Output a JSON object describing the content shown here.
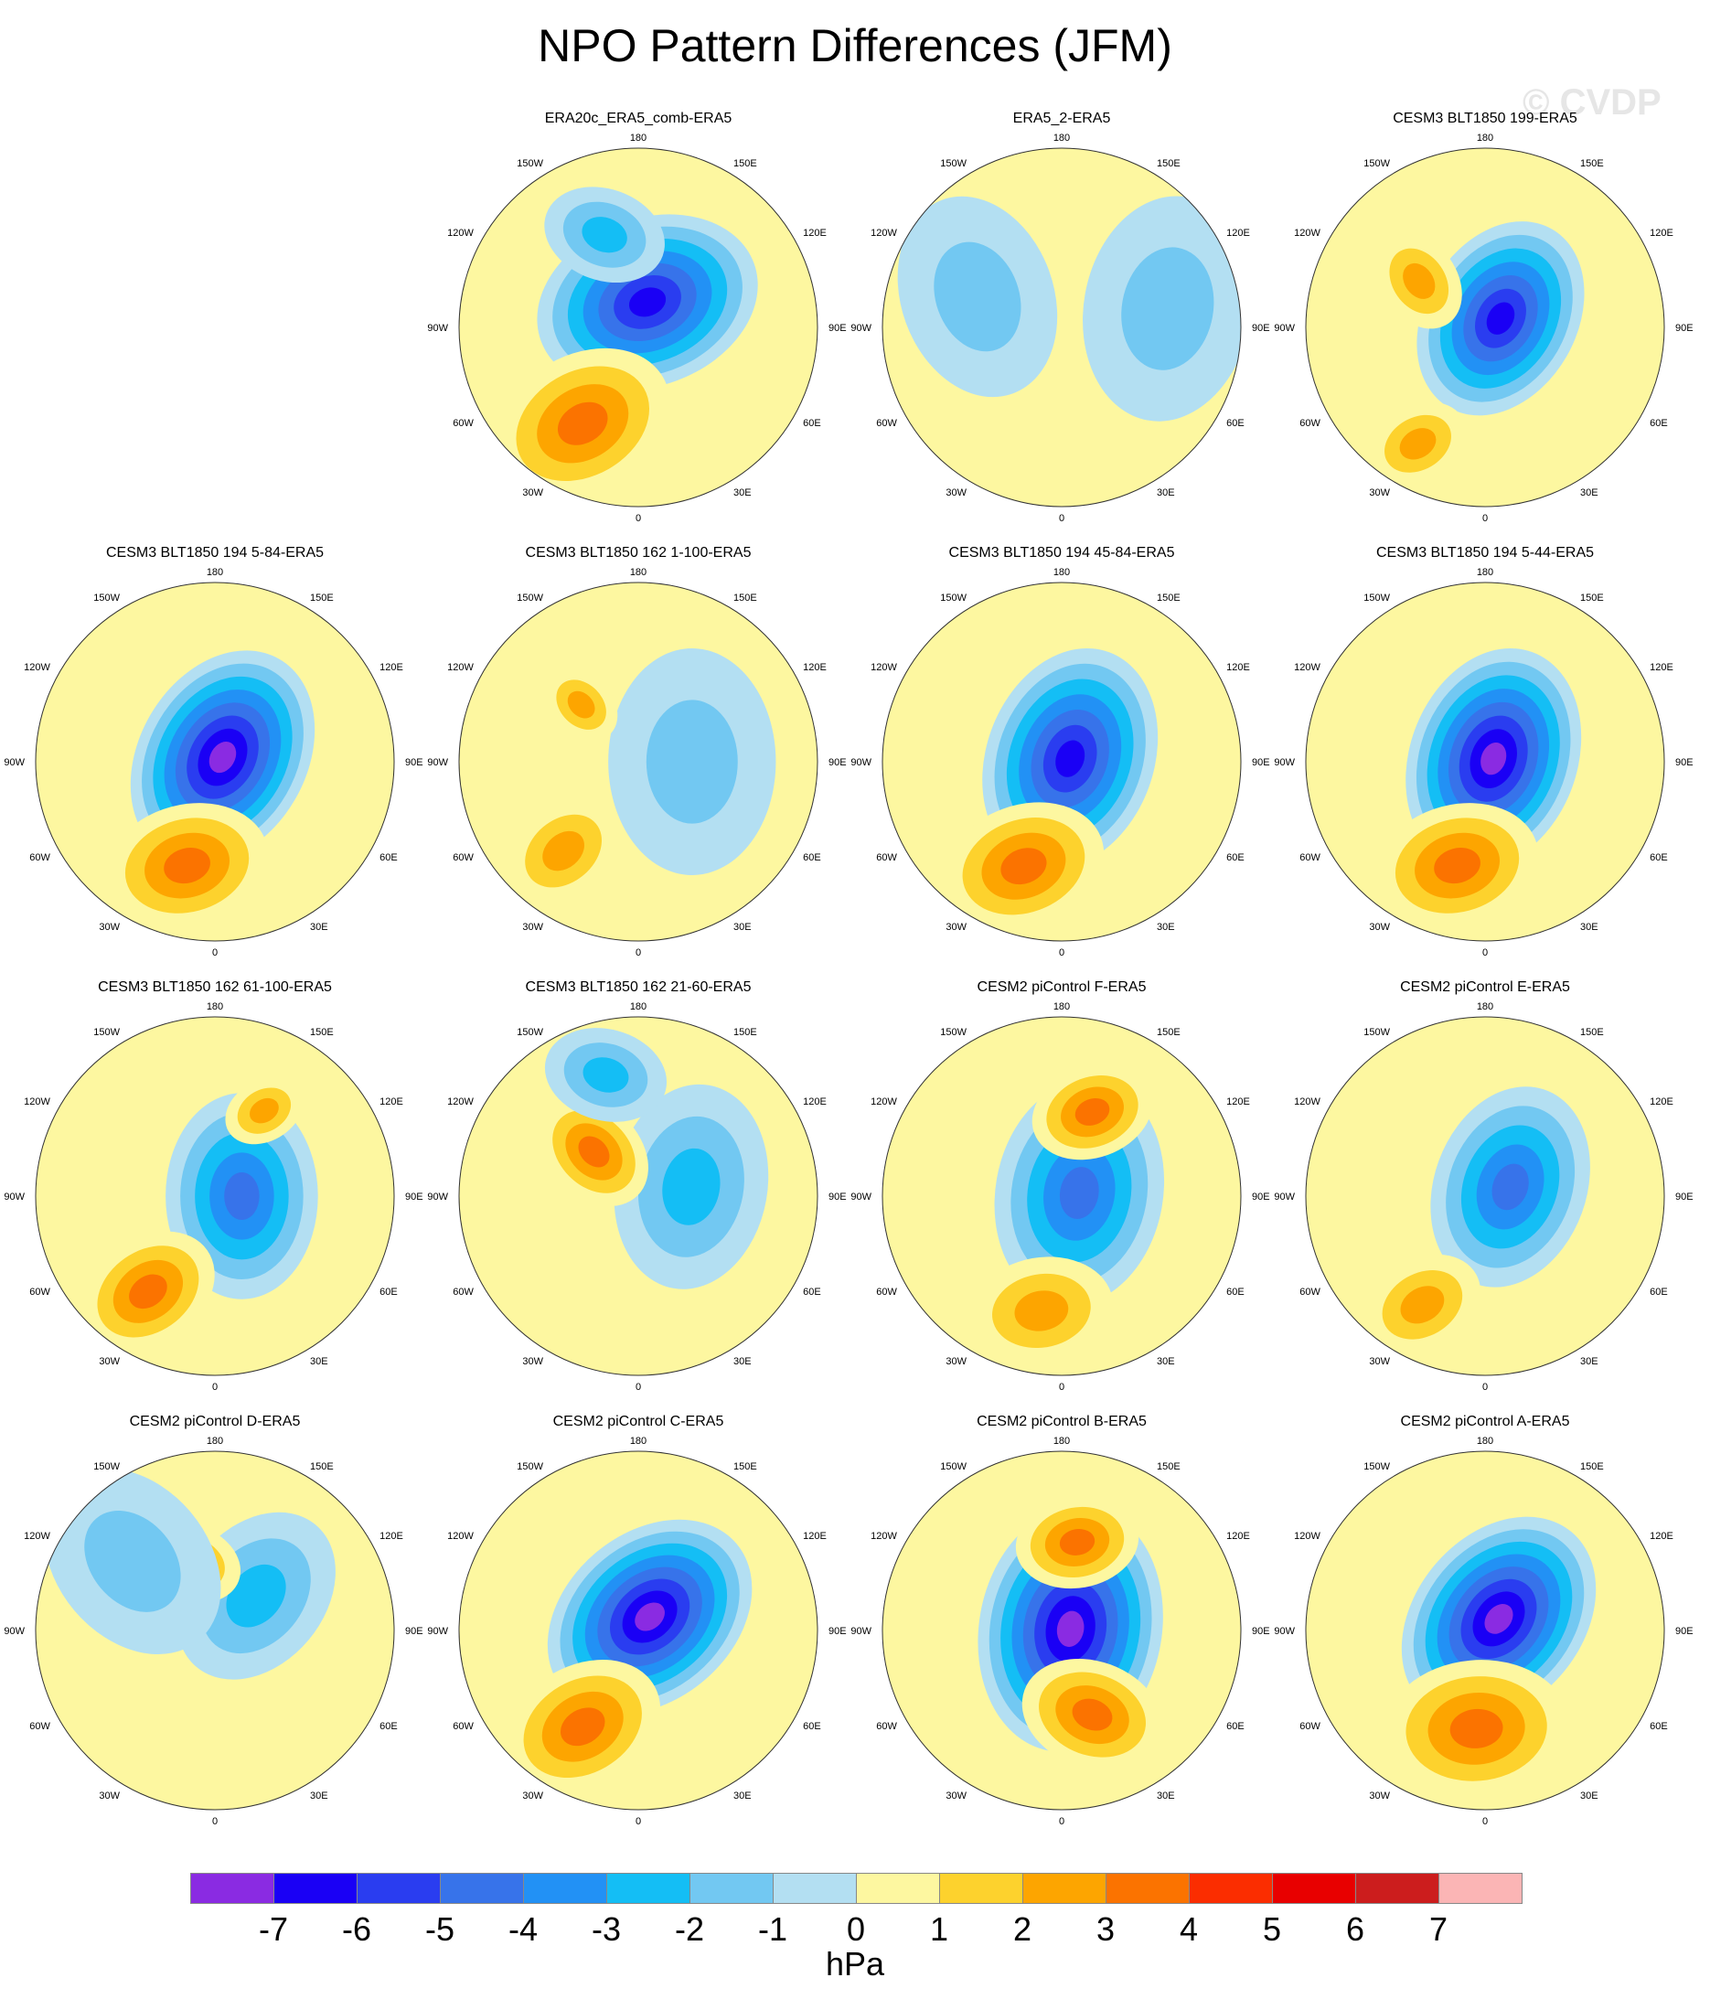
{
  "chart_data": {
    "type": "heatmap",
    "title": "NPO Pattern Differences (JFM)",
    "watermark": "© CVDP",
    "projection": "north polar stereographic",
    "unit": "hPa",
    "lon_labels": [
      "180",
      "150E",
      "120E",
      "90E",
      "60E",
      "30E",
      "0",
      "30W",
      "60W",
      "90W",
      "120W",
      "150W"
    ],
    "colorbar": {
      "ticks": [
        "-7",
        "-6",
        "-5",
        "-4",
        "-3",
        "-2",
        "-1",
        "0",
        "1",
        "2",
        "3",
        "4",
        "5",
        "6",
        "7"
      ],
      "colors": [
        "#8a2be2",
        "#1a00f5",
        "#2a3df0",
        "#3773ea",
        "#2291f5",
        "#14bef5",
        "#72c8f2",
        "#b3dff2",
        "#fdf7a0",
        "#fdd22d",
        "#fda500",
        "#fb7300",
        "#fb2d00",
        "#e80000",
        "#cc1d1d",
        "#fbb5b5"
      ]
    },
    "panels": [
      {
        "title": "ERA20c_ERA5_comb-ERA5",
        "row": 0,
        "col": 1,
        "low_min": -6,
        "high_max": 3,
        "features": [
          {
            "lon": 160,
            "dist": 0.15,
            "value": -6,
            "size": 0.55
          },
          {
            "lon": 330,
            "dist": 0.62,
            "value": 3,
            "size": 0.45
          },
          {
            "lon": 200,
            "dist": 0.55,
            "value": -2,
            "size": 0.3
          }
        ]
      },
      {
        "title": "ERA5_2-ERA5",
        "row": 0,
        "col": 2,
        "low_min": -1,
        "high_max": 1,
        "features": [
          {
            "lon": 100,
            "dist": 0.6,
            "value": -1,
            "size": 0.55
          },
          {
            "lon": 250,
            "dist": 0.5,
            "value": -1,
            "size": 0.5
          }
        ]
      },
      {
        "title": "CESM3 BLT1850 199-ERA5",
        "row": 0,
        "col": 3,
        "low_min": -6,
        "high_max": 2,
        "features": [
          {
            "lon": 120,
            "dist": 0.1,
            "value": -6,
            "size": 0.5
          },
          {
            "lon": 330,
            "dist": 0.75,
            "value": 2,
            "size": 0.25
          },
          {
            "lon": 235,
            "dist": 0.45,
            "value": 2,
            "size": 0.25
          }
        ]
      },
      {
        "title": "CESM3 BLT1850 194 5-84-ERA5",
        "row": 1,
        "col": 0,
        "low_min": -7,
        "high_max": 3,
        "features": [
          {
            "lon": 120,
            "dist": 0.05,
            "value": -7,
            "size": 0.55
          },
          {
            "lon": 345,
            "dist": 0.6,
            "value": 3,
            "size": 0.4
          }
        ]
      },
      {
        "title": "CESM3 BLT1850 162 1-100-ERA5",
        "row": 1,
        "col": 1,
        "low_min": -1,
        "high_max": 2,
        "features": [
          {
            "lon": 90,
            "dist": 0.3,
            "value": -1,
            "size": 0.55
          },
          {
            "lon": 320,
            "dist": 0.65,
            "value": 2,
            "size": 0.3
          },
          {
            "lon": 225,
            "dist": 0.45,
            "value": 2,
            "size": 0.2
          }
        ]
      },
      {
        "title": "CESM3 BLT1850 194 45-84-ERA5",
        "row": 1,
        "col": 2,
        "low_min": -6,
        "high_max": 3,
        "features": [
          {
            "lon": 110,
            "dist": 0.05,
            "value": -6,
            "size": 0.55
          },
          {
            "lon": 340,
            "dist": 0.62,
            "value": 3,
            "size": 0.4
          }
        ]
      },
      {
        "title": "CESM3 BLT1850 194 5-44-ERA5",
        "row": 1,
        "col": 3,
        "low_min": -7,
        "high_max": 3,
        "features": [
          {
            "lon": 110,
            "dist": 0.05,
            "value": -7,
            "size": 0.55
          },
          {
            "lon": 345,
            "dist": 0.6,
            "value": 3,
            "size": 0.4
          }
        ]
      },
      {
        "title": "CESM3 BLT1850 162 61-100-ERA5",
        "row": 2,
        "col": 0,
        "low_min": -4,
        "high_max": 3,
        "features": [
          {
            "lon": 90,
            "dist": 0.15,
            "value": -4,
            "size": 0.5
          },
          {
            "lon": 325,
            "dist": 0.65,
            "value": 3,
            "size": 0.35
          },
          {
            "lon": 150,
            "dist": 0.55,
            "value": 2,
            "size": 0.2
          }
        ]
      },
      {
        "title": "CESM3 BLT1850 162 21-60-ERA5",
        "row": 2,
        "col": 1,
        "low_min": -2,
        "high_max": 3,
        "features": [
          {
            "lon": 100,
            "dist": 0.3,
            "value": -2,
            "size": 0.5
          },
          {
            "lon": 225,
            "dist": 0.35,
            "value": 3,
            "size": 0.3
          },
          {
            "lon": 195,
            "dist": 0.7,
            "value": -2,
            "size": 0.3
          }
        ]
      },
      {
        "title": "CESM2 piControl F-ERA5",
        "row": 2,
        "col": 2,
        "low_min": -4,
        "high_max": 3,
        "features": [
          {
            "lon": 100,
            "dist": 0.1,
            "value": -4,
            "size": 0.55
          },
          {
            "lon": 160,
            "dist": 0.5,
            "value": 3,
            "size": 0.3
          },
          {
            "lon": 350,
            "dist": 0.65,
            "value": 2,
            "size": 0.35
          }
        ]
      },
      {
        "title": "CESM2 piControl E-ERA5",
        "row": 2,
        "col": 3,
        "low_min": -4,
        "high_max": 2,
        "features": [
          {
            "lon": 110,
            "dist": 0.15,
            "value": -4,
            "size": 0.5
          },
          {
            "lon": 330,
            "dist": 0.7,
            "value": 2,
            "size": 0.3
          }
        ]
      },
      {
        "title": "CESM2 piControl D-ERA5",
        "row": 3,
        "col": 0,
        "low_min": -2,
        "high_max": 2,
        "features": [
          {
            "lon": 130,
            "dist": 0.3,
            "value": -2,
            "size": 0.45
          },
          {
            "lon": 200,
            "dist": 0.4,
            "value": 2,
            "size": 0.25
          },
          {
            "lon": 230,
            "dist": 0.6,
            "value": -1,
            "size": 0.5
          }
        ]
      },
      {
        "title": "CESM2 piControl C-ERA5",
        "row": 3,
        "col": 1,
        "low_min": -7,
        "high_max": 3,
        "features": [
          {
            "lon": 140,
            "dist": 0.1,
            "value": -7,
            "size": 0.55
          },
          {
            "lon": 330,
            "dist": 0.62,
            "value": 3,
            "size": 0.4
          }
        ]
      },
      {
        "title": "CESM2 piControl B-ERA5",
        "row": 3,
        "col": 2,
        "low_min": -7,
        "high_max": 3,
        "features": [
          {
            "lon": 100,
            "dist": 0.05,
            "value": -7,
            "size": 0.6
          },
          {
            "lon": 20,
            "dist": 0.5,
            "value": 3,
            "size": 0.35
          },
          {
            "lon": 170,
            "dist": 0.5,
            "value": 3,
            "size": 0.3
          }
        ]
      },
      {
        "title": "CESM2 piControl A-ERA5",
        "row": 3,
        "col": 3,
        "low_min": -7,
        "high_max": 3,
        "features": [
          {
            "lon": 130,
            "dist": 0.1,
            "value": -7,
            "size": 0.55
          },
          {
            "lon": 355,
            "dist": 0.55,
            "value": 3,
            "size": 0.45
          }
        ]
      }
    ]
  }
}
